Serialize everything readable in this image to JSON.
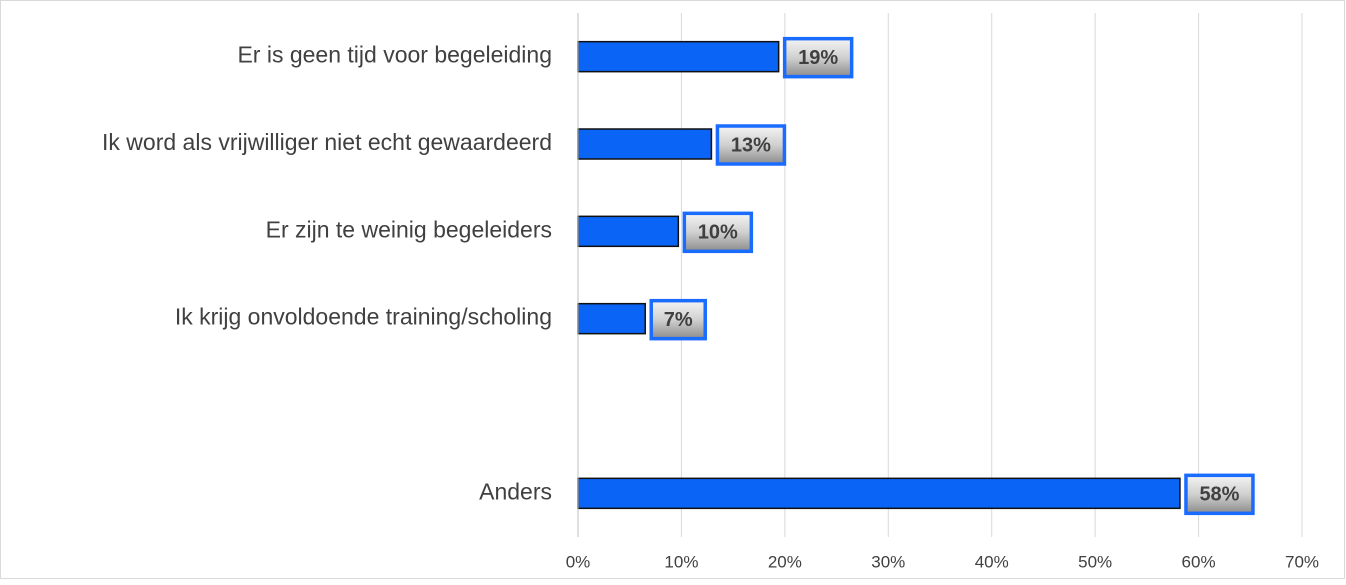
{
  "chart_data": {
    "type": "bar",
    "orientation": "horizontal",
    "categories": [
      "Er is geen tijd voor begeleiding",
      "Ik word als vrijwilliger niet echt gewaardeerd",
      "Er zijn te weinig begeleiders",
      "Ik krijg onvoldoende training/scholing",
      null,
      "Anders"
    ],
    "values": [
      19.4,
      12.9,
      9.7,
      6.5,
      null,
      58.2
    ],
    "value_labels": [
      "19%",
      "13%",
      "10%",
      "7%",
      null,
      "58%"
    ],
    "color": "#0a64f5",
    "xlim": [
      0,
      70
    ],
    "xticks": [
      {
        "value": 0,
        "label": "0%"
      },
      {
        "value": 10,
        "label": "10%"
      },
      {
        "value": 20,
        "label": "20%"
      },
      {
        "value": 30,
        "label": "30%"
      },
      {
        "value": 40,
        "label": "40%"
      },
      {
        "value": 50,
        "label": "50%"
      },
      {
        "value": 60,
        "label": "60%"
      },
      {
        "value": 70,
        "label": "70%"
      }
    ],
    "grid": true
  }
}
